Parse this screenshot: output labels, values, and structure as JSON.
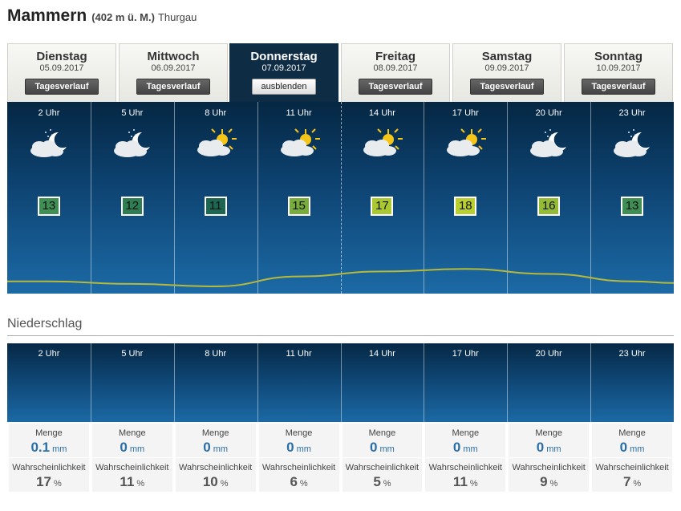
{
  "location": {
    "name": "Mammern",
    "altitude": "(402 m ü. M.)",
    "region": "Thurgau"
  },
  "days": [
    {
      "name": "Dienstag",
      "date": "05.09.2017",
      "button": "Tagesverlauf",
      "active": false
    },
    {
      "name": "Mittwoch",
      "date": "06.09.2017",
      "button": "Tagesverlauf",
      "active": false
    },
    {
      "name": "Donnerstag",
      "date": "07.09.2017",
      "button": "ausblenden",
      "active": true
    },
    {
      "name": "Freitag",
      "date": "08.09.2017",
      "button": "Tagesverlauf",
      "active": false
    },
    {
      "name": "Samstag",
      "date": "09.09.2017",
      "button": "Tagesverlauf",
      "active": false
    },
    {
      "name": "Sonntag",
      "date": "10.09.2017",
      "button": "Tagesverlauf",
      "active": false
    }
  ],
  "hours": [
    {
      "time": "2 Uhr",
      "icon": "cloud-moon-icon",
      "temp": "13",
      "temp_color": "#3f8f55"
    },
    {
      "time": "5 Uhr",
      "icon": "cloud-moon-icon",
      "temp": "12",
      "temp_color": "#2f7d52"
    },
    {
      "time": "8 Uhr",
      "icon": "cloud-sun-icon",
      "temp": "11",
      "temp_color": "#1d6652"
    },
    {
      "time": "11 Uhr",
      "icon": "cloud-sun-icon",
      "temp": "15",
      "temp_color": "#78ad3c"
    },
    {
      "time": "14 Uhr",
      "icon": "cloud-sun-icon",
      "temp": "17",
      "temp_color": "#a9c832"
    },
    {
      "time": "17 Uhr",
      "icon": "cloud-sun-icon",
      "temp": "18",
      "temp_color": "#b9cf31"
    },
    {
      "time": "20 Uhr",
      "icon": "cloud-moon-icon",
      "temp": "16",
      "temp_color": "#93bb35"
    },
    {
      "time": "23 Uhr",
      "icon": "cloud-moon-icon",
      "temp": "13",
      "temp_color": "#3f8f55"
    }
  ],
  "precipitation": {
    "title": "Niederschlag",
    "menge_label": "Menge",
    "menge_unit": "mm",
    "prob_label": "Wahrscheinlichkeit",
    "prob_unit": "%",
    "items": [
      {
        "time": "2 Uhr",
        "menge": "0.1",
        "prob": "17"
      },
      {
        "time": "5 Uhr",
        "menge": "0",
        "prob": "11"
      },
      {
        "time": "8 Uhr",
        "menge": "0",
        "prob": "10"
      },
      {
        "time": "11 Uhr",
        "menge": "0",
        "prob": "6"
      },
      {
        "time": "14 Uhr",
        "menge": "0",
        "prob": "5"
      },
      {
        "time": "17 Uhr",
        "menge": "0",
        "prob": "11"
      },
      {
        "time": "20 Uhr",
        "menge": "0",
        "prob": "9"
      },
      {
        "time": "23 Uhr",
        "menge": "0",
        "prob": "7"
      }
    ]
  },
  "colors": {
    "line": "#b7b93a",
    "sun": "#f5c518",
    "cloud": "#e9ecef"
  }
}
